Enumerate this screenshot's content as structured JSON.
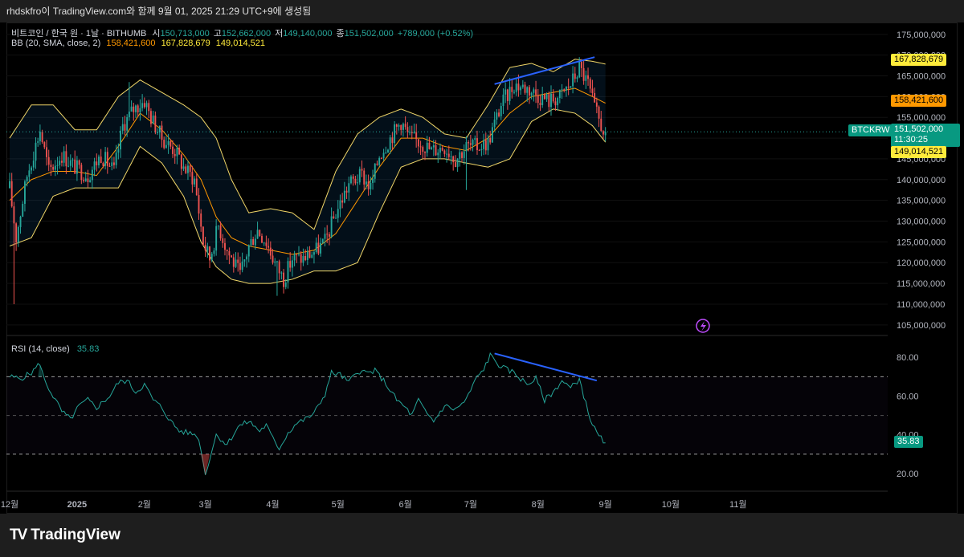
{
  "header": {
    "caption": "rhdskfro이 TradingView.com와 함께 9월 01, 2025 21:29 UTC+9에 생성됨"
  },
  "legend": {
    "symbol": "비트코인 / 한국 원 · 1날 · BITHUMB",
    "open_label": "시",
    "open": "150,713,000",
    "high_label": "고",
    "high": "152,662,000",
    "low_label": "저",
    "low": "149,140,000",
    "close_label": "종",
    "close": "151,502,000",
    "change": "+789,000 (+0.52%)",
    "bb_label": "BB (20, SMA, close, 2)",
    "bb_basis": "158,421,600",
    "bb_upper": "167,828,679",
    "bb_lower": "149,014,521",
    "rsi_label": "RSI (14, close)",
    "rsi_value": "35.83"
  },
  "price_tags": {
    "upper": "167,828,679",
    "basis": "158,421,600",
    "symbol": "BTCKRW",
    "last": "151,502,000",
    "countdown": "11:30:25",
    "lower": "149,014,521",
    "rsi": "35.83"
  },
  "colors": {
    "up": "#26a69a",
    "down": "#ef5350",
    "bb_band": "#f0d668",
    "bb_basis": "#ff9800",
    "rsi": "#26a69a",
    "trendline": "#2962ff"
  },
  "brand": "TradingView",
  "chart_data": {
    "type": "candlestick",
    "symbol": "BTCKRW",
    "interval": "1D",
    "price_axis": {
      "ticks": [
        105000000,
        110000000,
        115000000,
        120000000,
        125000000,
        130000000,
        135000000,
        140000000,
        145000000,
        150000000,
        155000000,
        160000000,
        165000000,
        170000000,
        175000000
      ],
      "tick_labels": [
        "105,000,000",
        "110,000,000",
        "115,000,000",
        "120,000,000",
        "125,000,000",
        "130,000,000",
        "135,000,000",
        "140,000,000",
        "145,000,000",
        "150,000,000",
        "155,000,000",
        "160,000,000",
        "165,000,000",
        "170,000,000",
        "175,000,000"
      ],
      "range": [
        104000000,
        176500000
      ]
    },
    "rsi_axis": {
      "ticks": [
        20,
        40,
        60,
        80
      ],
      "tick_labels": [
        "20.00",
        "40.00",
        "60.00",
        "80.00"
      ],
      "range": [
        15,
        83
      ],
      "levels": [
        70,
        50,
        30
      ]
    },
    "x_axis": {
      "range": [
        0,
        365
      ],
      "ticks": [
        {
          "day": 0,
          "label": "12월"
        },
        {
          "day": 31,
          "label": "2025"
        },
        {
          "day": 62,
          "label": "2월"
        },
        {
          "day": 90,
          "label": "3월"
        },
        {
          "day": 121,
          "label": "4월"
        },
        {
          "day": 151,
          "label": "5월"
        },
        {
          "day": 182,
          "label": "6월"
        },
        {
          "day": 212,
          "label": "7월"
        },
        {
          "day": 243,
          "label": "8월"
        },
        {
          "day": 274,
          "label": "9월"
        },
        {
          "day": 304,
          "label": "10월"
        },
        {
          "day": 335,
          "label": "11월"
        }
      ]
    },
    "close_anchors": [
      [
        0,
        138000000
      ],
      [
        3,
        126000000
      ],
      [
        8,
        141000000
      ],
      [
        14,
        152000000
      ],
      [
        18,
        142000000
      ],
      [
        24,
        146000000
      ],
      [
        30,
        143000000
      ],
      [
        36,
        141000000
      ],
      [
        42,
        146000000
      ],
      [
        48,
        142000000
      ],
      [
        52,
        153000000
      ],
      [
        57,
        157000000
      ],
      [
        62,
        159000000
      ],
      [
        65,
        155000000
      ],
      [
        70,
        150000000
      ],
      [
        76,
        147000000
      ],
      [
        80,
        143000000
      ],
      [
        85,
        140000000
      ],
      [
        89,
        125000000
      ],
      [
        92,
        121000000
      ],
      [
        96,
        129000000
      ],
      [
        100,
        123000000
      ],
      [
        106,
        117000000
      ],
      [
        110,
        124000000
      ],
      [
        114,
        128000000
      ],
      [
        118,
        125000000
      ],
      [
        122,
        120000000
      ],
      [
        126,
        116000000
      ],
      [
        130,
        121000000
      ],
      [
        135,
        121000000
      ],
      [
        141,
        123000000
      ],
      [
        145,
        125000000
      ],
      [
        150,
        132000000
      ],
      [
        156,
        139000000
      ],
      [
        162,
        141000000
      ],
      [
        166,
        138000000
      ],
      [
        170,
        146000000
      ],
      [
        175,
        150000000
      ],
      [
        180,
        154000000
      ],
      [
        184,
        150000000
      ],
      [
        189,
        149000000
      ],
      [
        194,
        147000000
      ],
      [
        200,
        148000000
      ],
      [
        205,
        145000000
      ],
      [
        210,
        148000000
      ],
      [
        215,
        148000000
      ],
      [
        220,
        149000000
      ],
      [
        226,
        158000000
      ],
      [
        232,
        163000000
      ],
      [
        238,
        162000000
      ],
      [
        244,
        160000000
      ],
      [
        248,
        159000000
      ],
      [
        253,
        160000000
      ],
      [
        258,
        163000000
      ],
      [
        262,
        167000000
      ],
      [
        266,
        163000000
      ],
      [
        269,
        157000000
      ],
      [
        272,
        153000000
      ],
      [
        274,
        151500000
      ]
    ],
    "high_low_anchors": [
      {
        "day": 2,
        "low": 110000000
      },
      {
        "day": 55,
        "high": 163500000
      },
      {
        "day": 123,
        "low": 112000000
      },
      {
        "day": 262,
        "high": 169500000
      },
      {
        "day": 210,
        "low": 137500000
      }
    ],
    "bollinger_bands": {
      "upper": [
        [
          0,
          150000000
        ],
        [
          10,
          158000000
        ],
        [
          20,
          158000000
        ],
        [
          30,
          152000000
        ],
        [
          40,
          152000000
        ],
        [
          50,
          160000000
        ],
        [
          60,
          164000000
        ],
        [
          70,
          161000000
        ],
        [
          80,
          158000000
        ],
        [
          88,
          155000000
        ],
        [
          95,
          150000000
        ],
        [
          102,
          140000000
        ],
        [
          110,
          132000000
        ],
        [
          120,
          133000000
        ],
        [
          130,
          132000000
        ],
        [
          140,
          128000000
        ],
        [
          150,
          142000000
        ],
        [
          160,
          151000000
        ],
        [
          170,
          155000000
        ],
        [
          180,
          157000000
        ],
        [
          190,
          155000000
        ],
        [
          200,
          151000000
        ],
        [
          210,
          150000000
        ],
        [
          220,
          158000000
        ],
        [
          230,
          167000000
        ],
        [
          240,
          168000000
        ],
        [
          250,
          166000000
        ],
        [
          260,
          169000000
        ],
        [
          268,
          168500000
        ],
        [
          274,
          167828679
        ]
      ],
      "basis": [
        [
          0,
          135000000
        ],
        [
          10,
          140000000
        ],
        [
          20,
          142000000
        ],
        [
          30,
          142000000
        ],
        [
          40,
          141000000
        ],
        [
          50,
          148000000
        ],
        [
          60,
          156000000
        ],
        [
          70,
          152000000
        ],
        [
          80,
          146000000
        ],
        [
          88,
          140000000
        ],
        [
          95,
          131000000
        ],
        [
          102,
          126000000
        ],
        [
          110,
          124000000
        ],
        [
          120,
          123000000
        ],
        [
          130,
          122000000
        ],
        [
          140,
          123000000
        ],
        [
          150,
          127000000
        ],
        [
          160,
          135000000
        ],
        [
          170,
          143000000
        ],
        [
          180,
          150000000
        ],
        [
          190,
          150000000
        ],
        [
          200,
          148000000
        ],
        [
          210,
          147000000
        ],
        [
          220,
          150000000
        ],
        [
          230,
          156000000
        ],
        [
          240,
          160000000
        ],
        [
          250,
          161000000
        ],
        [
          260,
          162000000
        ],
        [
          268,
          160000000
        ],
        [
          274,
          158421600
        ]
      ],
      "lower": [
        [
          0,
          124000000
        ],
        [
          10,
          126000000
        ],
        [
          20,
          136000000
        ],
        [
          30,
          138000000
        ],
        [
          40,
          138000000
        ],
        [
          50,
          138000000
        ],
        [
          60,
          148000000
        ],
        [
          70,
          144000000
        ],
        [
          80,
          136000000
        ],
        [
          88,
          125000000
        ],
        [
          95,
          119000000
        ],
        [
          102,
          116000000
        ],
        [
          110,
          115000000
        ],
        [
          120,
          115000000
        ],
        [
          130,
          116000000
        ],
        [
          140,
          118000000
        ],
        [
          150,
          118000000
        ],
        [
          160,
          120000000
        ],
        [
          170,
          132000000
        ],
        [
          180,
          143000000
        ],
        [
          190,
          145000000
        ],
        [
          200,
          145000000
        ],
        [
          210,
          144000000
        ],
        [
          220,
          143000000
        ],
        [
          230,
          145000000
        ],
        [
          240,
          154000000
        ],
        [
          250,
          157000000
        ],
        [
          260,
          156000000
        ],
        [
          268,
          153000000
        ],
        [
          274,
          149014521
        ]
      ]
    },
    "rsi": [
      [
        0,
        70
      ],
      [
        5,
        69
      ],
      [
        10,
        72
      ],
      [
        14,
        77
      ],
      [
        16,
        68
      ],
      [
        20,
        60
      ],
      [
        24,
        52
      ],
      [
        28,
        48
      ],
      [
        32,
        55
      ],
      [
        36,
        58
      ],
      [
        40,
        54
      ],
      [
        46,
        60
      ],
      [
        50,
        67
      ],
      [
        54,
        68
      ],
      [
        58,
        62
      ],
      [
        62,
        66
      ],
      [
        66,
        58
      ],
      [
        70,
        54
      ],
      [
        74,
        47
      ],
      [
        78,
        42
      ],
      [
        82,
        41
      ],
      [
        86,
        40
      ],
      [
        88,
        33
      ],
      [
        90,
        19
      ],
      [
        92,
        28
      ],
      [
        95,
        40
      ],
      [
        100,
        35
      ],
      [
        105,
        44
      ],
      [
        110,
        47
      ],
      [
        115,
        42
      ],
      [
        118,
        45
      ],
      [
        121,
        38
      ],
      [
        124,
        33
      ],
      [
        128,
        41
      ],
      [
        132,
        46
      ],
      [
        136,
        48
      ],
      [
        140,
        51
      ],
      [
        145,
        61
      ],
      [
        148,
        72
      ],
      [
        152,
        71
      ],
      [
        156,
        67
      ],
      [
        160,
        73
      ],
      [
        165,
        72
      ],
      [
        168,
        73
      ],
      [
        172,
        68
      ],
      [
        175,
        63
      ],
      [
        178,
        58
      ],
      [
        182,
        54
      ],
      [
        185,
        50
      ],
      [
        188,
        58
      ],
      [
        191,
        52
      ],
      [
        195,
        47
      ],
      [
        200,
        55
      ],
      [
        205,
        53
      ],
      [
        210,
        58
      ],
      [
        214,
        68
      ],
      [
        218,
        74
      ],
      [
        221,
        81
      ],
      [
        226,
        75
      ],
      [
        232,
        72
      ],
      [
        238,
        66
      ],
      [
        242,
        69
      ],
      [
        246,
        58
      ],
      [
        250,
        62
      ],
      [
        254,
        68
      ],
      [
        258,
        64
      ],
      [
        262,
        69
      ],
      [
        265,
        56
      ],
      [
        268,
        45
      ],
      [
        271,
        39
      ],
      [
        274,
        35.83
      ]
    ],
    "trendlines": [
      {
        "pane": "price",
        "from": [
          223,
          163000000
        ],
        "to": [
          269,
          169500000
        ]
      },
      {
        "pane": "rsi",
        "from": [
          223,
          82
        ],
        "to": [
          270,
          68
        ]
      }
    ]
  }
}
